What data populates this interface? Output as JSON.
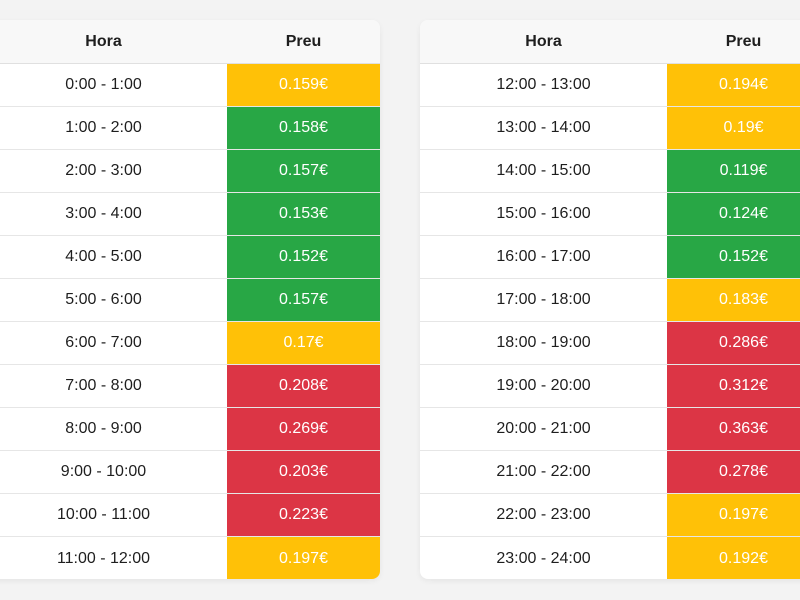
{
  "headers": {
    "hour": "Hora",
    "price": "Preu"
  },
  "colors": {
    "green": "#28a745",
    "yellow": "#ffc107",
    "red": "#dc3545"
  },
  "left_table": [
    {
      "hour": "0:00 - 1:00",
      "price": "0.159€",
      "level": "yellow"
    },
    {
      "hour": "1:00 - 2:00",
      "price": "0.158€",
      "level": "green"
    },
    {
      "hour": "2:00 - 3:00",
      "price": "0.157€",
      "level": "green"
    },
    {
      "hour": "3:00 - 4:00",
      "price": "0.153€",
      "level": "green"
    },
    {
      "hour": "4:00 - 5:00",
      "price": "0.152€",
      "level": "green"
    },
    {
      "hour": "5:00 - 6:00",
      "price": "0.157€",
      "level": "green"
    },
    {
      "hour": "6:00 - 7:00",
      "price": "0.17€",
      "level": "yellow"
    },
    {
      "hour": "7:00 - 8:00",
      "price": "0.208€",
      "level": "red"
    },
    {
      "hour": "8:00 - 9:00",
      "price": "0.269€",
      "level": "red"
    },
    {
      "hour": "9:00 - 10:00",
      "price": "0.203€",
      "level": "red"
    },
    {
      "hour": "10:00 - 11:00",
      "price": "0.223€",
      "level": "red"
    },
    {
      "hour": "11:00 - 12:00",
      "price": "0.197€",
      "level": "yellow"
    }
  ],
  "right_table": [
    {
      "hour": "12:00 - 13:00",
      "price": "0.194€",
      "level": "yellow"
    },
    {
      "hour": "13:00 - 14:00",
      "price": "0.19€",
      "level": "yellow"
    },
    {
      "hour": "14:00 - 15:00",
      "price": "0.119€",
      "level": "green"
    },
    {
      "hour": "15:00 - 16:00",
      "price": "0.124€",
      "level": "green"
    },
    {
      "hour": "16:00 - 17:00",
      "price": "0.152€",
      "level": "green"
    },
    {
      "hour": "17:00 - 18:00",
      "price": "0.183€",
      "level": "yellow"
    },
    {
      "hour": "18:00 - 19:00",
      "price": "0.286€",
      "level": "red"
    },
    {
      "hour": "19:00 - 20:00",
      "price": "0.312€",
      "level": "red"
    },
    {
      "hour": "20:00 - 21:00",
      "price": "0.363€",
      "level": "red"
    },
    {
      "hour": "21:00 - 22:00",
      "price": "0.278€",
      "level": "red"
    },
    {
      "hour": "22:00 - 23:00",
      "price": "0.197€",
      "level": "yellow"
    },
    {
      "hour": "23:00 - 24:00",
      "price": "0.192€",
      "level": "yellow"
    }
  ]
}
